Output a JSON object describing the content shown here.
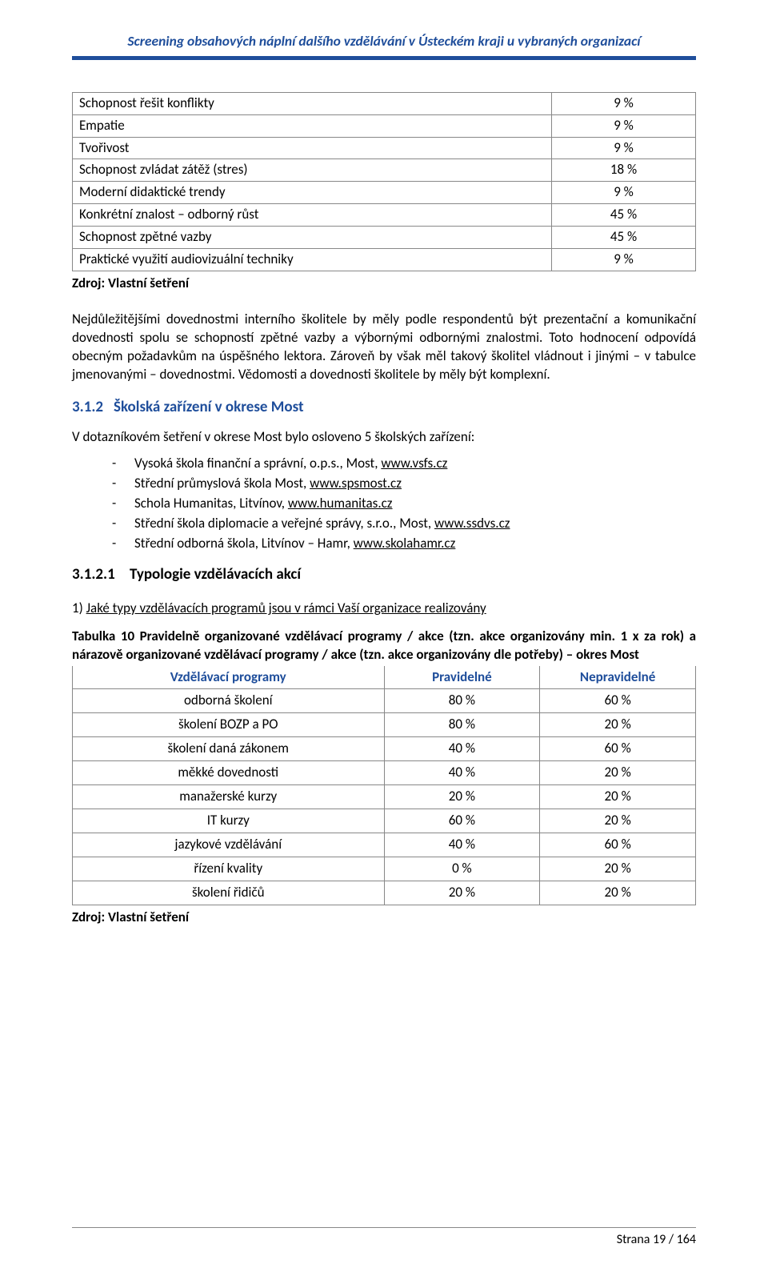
{
  "running_header": "Screening obsahových náplní dalšího vzdělávání v Ústeckém kraji u vybraných organizací",
  "table1": {
    "rows": [
      {
        "label": "Schopnost řešit konflikty",
        "value": "9 %"
      },
      {
        "label": "Empatie",
        "value": "9 %"
      },
      {
        "label": "Tvořivost",
        "value": "9 %"
      },
      {
        "label": "Schopnost zvládat zátěž (stres)",
        "value": "18 %"
      },
      {
        "label": "Moderní didaktické trendy",
        "value": "9 %"
      },
      {
        "label": "Konkrétní znalost – odborný růst",
        "value": "45 %"
      },
      {
        "label": "Schopnost zpětné vazby",
        "value": "45 %"
      },
      {
        "label": "Praktické využití audiovizuální techniky",
        "value": "9 %"
      }
    ]
  },
  "source_label": "Zdroj: Vlastní šetření",
  "para1": "Nejdůležitějšími dovednostmi interního školitele by měly podle respondentů být prezentační a komunikační dovednosti spolu se schopností zpětné vazby a výbornými odbornými znalostmi. Toto hodnocení odpovídá obecným požadavkům na úspěšného lektora. Zároveň by však měl takový školitel vládnout i jinými – v tabulce jmenovanými – dovednostmi. Vědomosti a dovednosti školitele by měly být komplexní.",
  "h3": {
    "num": "3.1.2",
    "text": "Školská zařízení v okrese Most"
  },
  "para2": "V dotazníkovém šetření v okrese Most bylo osloveno 5 školských zařízení:",
  "list": [
    {
      "pre": "Vysoká škola finanční a správní, o.p.s., Most, ",
      "link": "www.vsfs.cz"
    },
    {
      "pre": "Střední průmyslová škola Most, ",
      "link": "www.spsmost.cz"
    },
    {
      "pre": "Schola Humanitas, Litvínov, ",
      "link": "www.humanitas.cz"
    },
    {
      "pre": "Střední škola diplomacie a veřejné správy, s.r.o., Most, ",
      "link": "www.ssdvs.cz"
    },
    {
      "pre": "Střední odborná škola, Litvínov – Hamr, ",
      "link": "www.skolahamr.cz"
    }
  ],
  "h4": {
    "num": "3.1.2.1",
    "text": "Typologie vzdělávacích akcí"
  },
  "question": {
    "num": "1) ",
    "text": "Jaké typy vzdělávacích programů jsou v rámci Vaší organizace realizovány"
  },
  "table2": {
    "caption": "Tabulka 10 Pravidelně organizované vzdělávací programy / akce (tzn. akce organizovány min. 1 x za rok) a nárazově organizované vzdělávací programy / akce (tzn. akce organizovány dle potřeby) – okres Most",
    "headers": [
      "Vzdělávací programy",
      "Pravidelné",
      "Nepravidelné"
    ],
    "col_widths": [
      "50%",
      "25%",
      "25%"
    ],
    "rows": [
      {
        "label": "odborná školení",
        "v1": "80 %",
        "v2": "60 %"
      },
      {
        "label": "školení BOZP a PO",
        "v1": "80 %",
        "v2": "20 %"
      },
      {
        "label": "školení daná zákonem",
        "v1": "40 %",
        "v2": "60 %"
      },
      {
        "label": "měkké dovednosti",
        "v1": "40 %",
        "v2": "20 %"
      },
      {
        "label": "manažerské kurzy",
        "v1": "20 %",
        "v2": "20 %"
      },
      {
        "label": "IT kurzy",
        "v1": "60 %",
        "v2": "20 %"
      },
      {
        "label": "jazykové vzdělávání",
        "v1": "40 %",
        "v2": "60 %"
      },
      {
        "label": "řízení kvality",
        "v1": "0 %",
        "v2": "20 %"
      },
      {
        "label": "školení řidičů",
        "v1": "20 %",
        "v2": "20 %"
      }
    ]
  },
  "footer": {
    "text": "Strana 19 / 164"
  }
}
